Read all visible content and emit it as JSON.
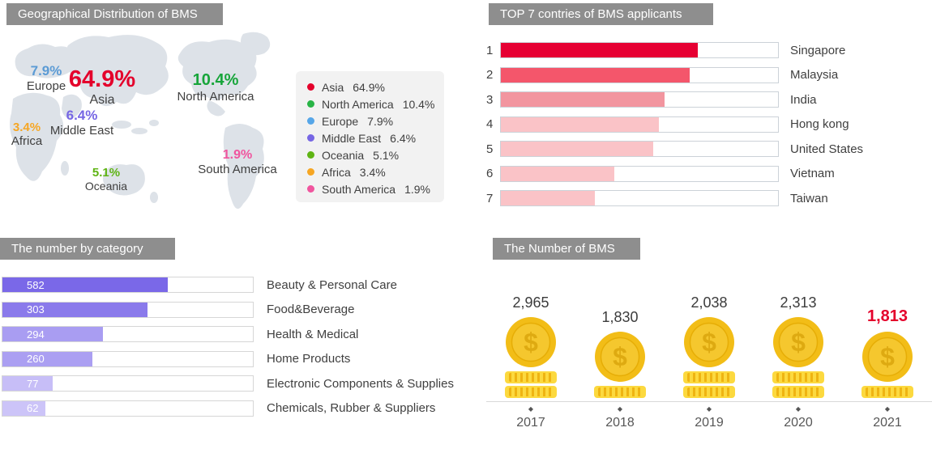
{
  "chart_data": [
    {
      "type": "pie",
      "title": "Geographical Distribution of BMS",
      "labels": [
        "Asia",
        "North America",
        "Europe",
        "Middle East",
        "Oceania",
        "Africa",
        "South America"
      ],
      "values": [
        64.9,
        10.4,
        7.9,
        6.4,
        5.1,
        3.4,
        1.9
      ],
      "unit": "%",
      "legend_position": "right"
    },
    {
      "type": "bar",
      "title": "TOP 7 contries of BMS applicants",
      "categories": [
        "Singapore",
        "Malaysia",
        "India",
        "Hong kong",
        "United States",
        "Vietnam",
        "Taiwan"
      ],
      "values": [
        71,
        68,
        59,
        57,
        55,
        41,
        34
      ],
      "ylabel": "bar fill as % of track (no numeric labels shown, estimated)",
      "orientation": "horizontal"
    },
    {
      "type": "bar",
      "title": "The number by category",
      "categories": [
        "Beauty & Personal Care",
        "Food&Beverage",
        "Health & Medical",
        "Home Products",
        "Electronic Components & Supplies",
        "Chemicals, Rubber & Suppliers"
      ],
      "values": [
        582,
        303,
        294,
        260,
        77,
        62
      ],
      "orientation": "horizontal"
    },
    {
      "type": "bar",
      "title": "The Number of BMS",
      "categories": [
        "2017",
        "2018",
        "2019",
        "2020",
        "2021"
      ],
      "values": [
        2965,
        1830,
        2038,
        2313,
        1813
      ],
      "style": "coin pictogram, 2021 highlighted red"
    }
  ],
  "geo": {
    "title": "Geographical Distribution of BMS",
    "regions": [
      {
        "name": "Europe",
        "value": "7.9%",
        "color": "#5b9bd5"
      },
      {
        "name": "Asia",
        "value": "64.9%",
        "color": "#e4002b"
      },
      {
        "name": "Middle East",
        "value": "6.4%",
        "color": "#7666e4"
      },
      {
        "name": "Africa",
        "value": "3.4%",
        "color": "#f6a623"
      },
      {
        "name": "North America",
        "value": "10.4%",
        "color": "#17a53a"
      },
      {
        "name": "Oceania",
        "value": "5.1%",
        "color": "#5fb414"
      },
      {
        "name": "South America",
        "value": "1.9%",
        "color": "#f0559e"
      }
    ],
    "legend": [
      {
        "name": "Asia",
        "value": "64.9%",
        "color": "#e4002b"
      },
      {
        "name": "North America",
        "value": "10.4%",
        "color": "#28b446"
      },
      {
        "name": "Europe",
        "value": "7.9%",
        "color": "#56a6e8"
      },
      {
        "name": "Middle East",
        "value": "6.4%",
        "color": "#7666e4"
      },
      {
        "name": "Oceania",
        "value": "5.1%",
        "color": "#5fb414"
      },
      {
        "name": "Africa",
        "value": "3.4%",
        "color": "#f6a623"
      },
      {
        "name": "South America",
        "value": "1.9%",
        "color": "#f0559e"
      }
    ],
    "map_color": "#dde2e8"
  },
  "top7": {
    "title": "TOP 7 contries of BMS applicants",
    "rows": [
      {
        "rank": "1",
        "country": "Singapore",
        "fill": 71,
        "color": "#e60033"
      },
      {
        "rank": "2",
        "country": "Malaysia",
        "fill": 68,
        "color": "#f4566b"
      },
      {
        "rank": "3",
        "country": "India",
        "fill": 59,
        "color": "#f2959f"
      },
      {
        "rank": "4",
        "country": "Hong kong",
        "fill": 57,
        "color": "#fac3c7"
      },
      {
        "rank": "5",
        "country": "United States",
        "fill": 55,
        "color": "#fac3c7"
      },
      {
        "rank": "6",
        "country": "Vietnam",
        "fill": 41,
        "color": "#fac3c7"
      },
      {
        "rank": "7",
        "country": "Taiwan",
        "fill": 34,
        "color": "#fac3c7"
      }
    ]
  },
  "category": {
    "title": "The number by category",
    "rows": [
      {
        "value": "582",
        "label": "Beauty & Personal Care",
        "fill": 66,
        "color": "#7a68e8"
      },
      {
        "value": "303",
        "label": "Food&Beverage",
        "fill": 58,
        "color": "#8a7aeb"
      },
      {
        "value": "294",
        "label": "Health & Medical",
        "fill": 40,
        "color": "#a99df2"
      },
      {
        "value": "260",
        "label": "Home Products",
        "fill": 36,
        "color": "#ab9ff2"
      },
      {
        "value": "77",
        "label": "Electronic Components & Supplies",
        "fill": 20,
        "color": "#c7bef7"
      },
      {
        "value": "62",
        "label": "Chemicals, Rubber & Suppliers",
        "fill": 17,
        "color": "#ccc4f8"
      }
    ]
  },
  "bms": {
    "title": "The Number of BMS",
    "highlight_color": "#e4002b",
    "coin_colors": {
      "outer": "#f2bd17",
      "inner": "#f5c72e",
      "symbol": "#d9a40a",
      "stack": "#fcd93f",
      "stripe": "#efb411"
    },
    "years": [
      {
        "year": "2017",
        "value": "2,965",
        "stacks": 2,
        "highlight": false
      },
      {
        "year": "2018",
        "value": "1,830",
        "stacks": 1,
        "highlight": false
      },
      {
        "year": "2019",
        "value": "2,038",
        "stacks": 2,
        "highlight": false
      },
      {
        "year": "2020",
        "value": "2,313",
        "stacks": 2,
        "highlight": false
      },
      {
        "year": "2021",
        "value": "1,813",
        "stacks": 1,
        "highlight": true
      }
    ]
  }
}
